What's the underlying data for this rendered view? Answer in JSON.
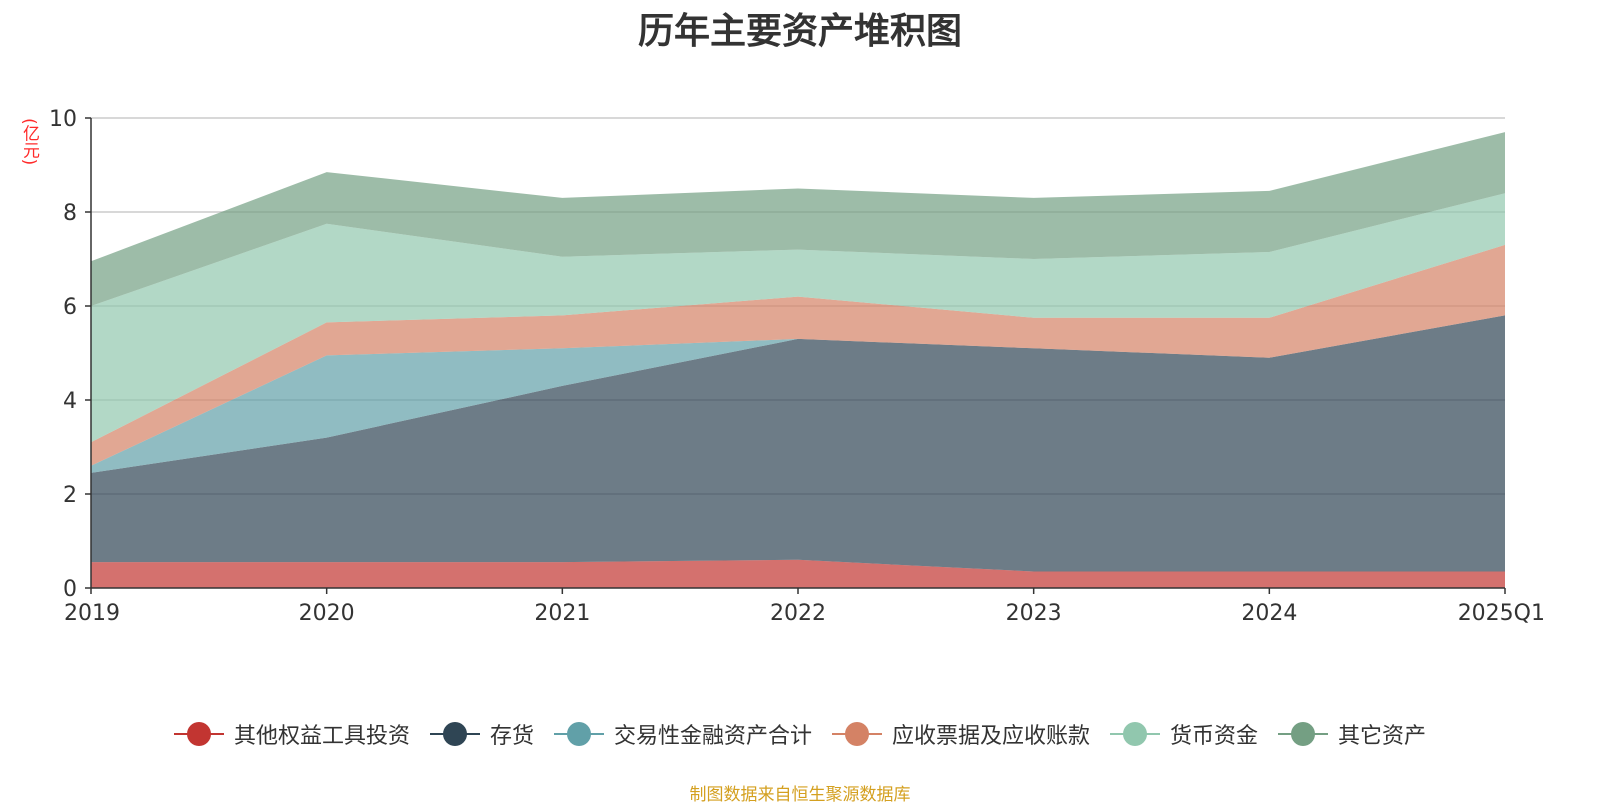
{
  "colors": {
    "其他权益工具投资": "#c23531",
    "存货": "#2f4554",
    "交易性金融资产合计": "#61a0a8",
    "应收票据及应收账款": "#d48265",
    "货币资金": "#91c7ae",
    "其它资产": "#749f83"
  },
  "chart_data": {
    "type": "area",
    "stacked": true,
    "title": "历年主要资产堆积图",
    "ylabel": "(亿元)",
    "ylim": [
      0,
      10
    ],
    "y_ticks": [
      "0",
      "2",
      "4",
      "6",
      "8",
      "10"
    ],
    "x": [
      "2019",
      "2020",
      "2021",
      "2022",
      "2023",
      "2024",
      "2025Q1"
    ],
    "grid": true,
    "legend_position": "bottom",
    "series": [
      {
        "name": "其他权益工具投资",
        "values": [
          0.55,
          0.55,
          0.55,
          0.6,
          0.35,
          0.35,
          0.35
        ]
      },
      {
        "name": "存货",
        "values": [
          1.9,
          2.65,
          3.75,
          4.7,
          4.75,
          4.55,
          5.45
        ]
      },
      {
        "name": "交易性金融资产合计",
        "values": [
          0.15,
          1.75,
          0.8,
          0.0,
          0.0,
          0.0,
          0.0
        ]
      },
      {
        "name": "应收票据及应收账款",
        "values": [
          0.5,
          0.7,
          0.7,
          0.9,
          0.65,
          0.85,
          1.5
        ]
      },
      {
        "name": "货币资金",
        "values": [
          2.9,
          2.1,
          1.25,
          1.0,
          1.25,
          1.4,
          1.1
        ]
      },
      {
        "name": "其它资产",
        "values": [
          0.95,
          1.1,
          1.25,
          1.3,
          1.3,
          1.3,
          1.3
        ]
      }
    ]
  },
  "source_note": "制图数据来自恒生聚源数据库"
}
